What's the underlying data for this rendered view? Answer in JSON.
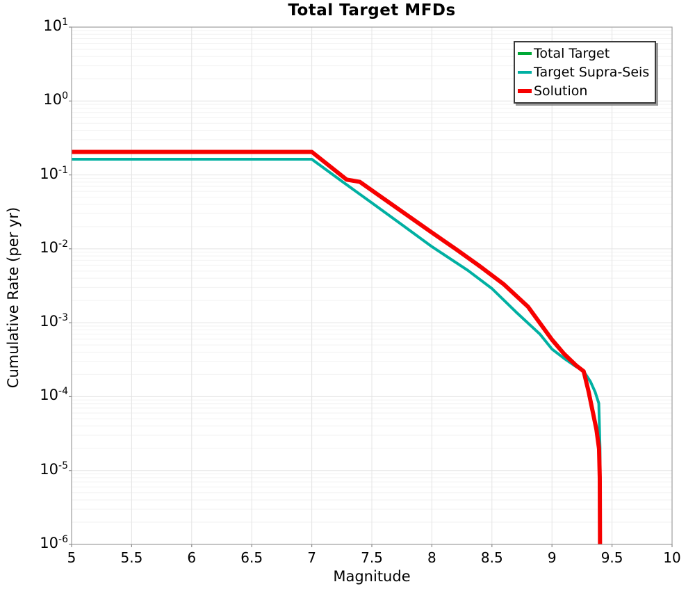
{
  "title": "Total Target MFDs",
  "xaxis": {
    "label": "Magnitude",
    "min": 5,
    "max": 10,
    "ticks": [
      {
        "value": 5,
        "label": "5"
      },
      {
        "value": 5.5,
        "label": "5.5"
      },
      {
        "value": 6,
        "label": "6"
      },
      {
        "value": 6.5,
        "label": "6.5"
      },
      {
        "value": 7,
        "label": "7"
      },
      {
        "value": 7.5,
        "label": "7.5"
      },
      {
        "value": 8,
        "label": "8"
      },
      {
        "value": 8.5,
        "label": "8.5"
      },
      {
        "value": 9,
        "label": "9"
      },
      {
        "value": 9.5,
        "label": "9.5"
      },
      {
        "value": 10,
        "label": "10"
      }
    ]
  },
  "yaxis": {
    "label": "Cumulative Rate (per yr)",
    "scale": "log",
    "exp_max": 1,
    "exp_min": -6,
    "tick_exponents": [
      1,
      0,
      -1,
      -2,
      -3,
      -4,
      -5,
      -6
    ]
  },
  "legend": {
    "position": "upper right"
  },
  "style": {
    "grid_major_color": "#e4e4e4",
    "grid_minor_color": "#f2f2f2",
    "spine_color": "#9e9e9e",
    "tick_color": "#8a8a8a"
  },
  "chart_data": {
    "type": "line",
    "title": "Total Target MFDs",
    "xlabel": "Magnitude",
    "ylabel": "Cumulative Rate (per yr)",
    "xlim": [
      5,
      10
    ],
    "ylim": [
      1e-06,
      10
    ],
    "yscale": "log",
    "grid": true,
    "legend_position": "upper right",
    "series": [
      {
        "name": "Total Target",
        "color": "#00a836",
        "width": 4,
        "note": "identical to Solution curve, hidden beneath it",
        "points": [
          [
            5.0,
            0.205
          ],
          [
            7.0,
            0.205
          ],
          [
            7.29,
            0.0865
          ],
          [
            7.4,
            0.0805
          ],
          [
            7.6,
            0.0475
          ],
          [
            7.8,
            0.0281
          ],
          [
            8.0,
            0.0166
          ],
          [
            8.2,
            0.0099
          ],
          [
            8.4,
            0.0058
          ],
          [
            8.6,
            0.0033
          ],
          [
            8.8,
            0.00165
          ],
          [
            9.0,
            0.00059
          ],
          [
            9.1,
            0.00038
          ],
          [
            9.2,
            0.000265
          ],
          [
            9.264,
            0.00022
          ],
          [
            9.304,
            0.000119
          ],
          [
            9.34,
            6.2e-05
          ],
          [
            9.37,
            3.6e-05
          ],
          [
            9.392,
            1.97e-05
          ],
          [
            9.398,
            8e-06
          ],
          [
            9.4,
            1e-06
          ]
        ]
      },
      {
        "name": "Target Supra-Seis",
        "color": "#00b0a2",
        "width": 4,
        "points": [
          [
            5.0,
            0.163
          ],
          [
            7.0,
            0.163
          ],
          [
            7.25,
            0.0822
          ],
          [
            7.5,
            0.0419
          ],
          [
            7.75,
            0.0212
          ],
          [
            8.0,
            0.0107
          ],
          [
            8.3,
            0.0051
          ],
          [
            8.5,
            0.0029
          ],
          [
            8.7,
            0.0014
          ],
          [
            8.9,
            0.0007
          ],
          [
            9.0,
            0.00044
          ],
          [
            9.1,
            0.00033
          ],
          [
            9.2,
            0.000255
          ],
          [
            9.264,
            0.00022
          ],
          [
            9.32,
            0.00016
          ],
          [
            9.36,
            0.000115
          ],
          [
            9.39,
            8.1e-05
          ],
          [
            9.4,
            2e-05
          ],
          [
            9.402,
            1e-06
          ]
        ]
      },
      {
        "name": "Solution",
        "color": "#f60000",
        "width": 6,
        "points": [
          [
            5.0,
            0.205
          ],
          [
            7.0,
            0.205
          ],
          [
            7.29,
            0.0865
          ],
          [
            7.4,
            0.0805
          ],
          [
            7.6,
            0.0475
          ],
          [
            7.8,
            0.0281
          ],
          [
            8.0,
            0.0166
          ],
          [
            8.2,
            0.0099
          ],
          [
            8.4,
            0.0058
          ],
          [
            8.6,
            0.0033
          ],
          [
            8.8,
            0.00165
          ],
          [
            9.0,
            0.00059
          ],
          [
            9.1,
            0.00038
          ],
          [
            9.2,
            0.000265
          ],
          [
            9.264,
            0.00022
          ],
          [
            9.304,
            0.000119
          ],
          [
            9.34,
            6.2e-05
          ],
          [
            9.37,
            3.6e-05
          ],
          [
            9.392,
            1.97e-05
          ],
          [
            9.398,
            8e-06
          ],
          [
            9.4,
            1e-06
          ]
        ]
      }
    ]
  }
}
